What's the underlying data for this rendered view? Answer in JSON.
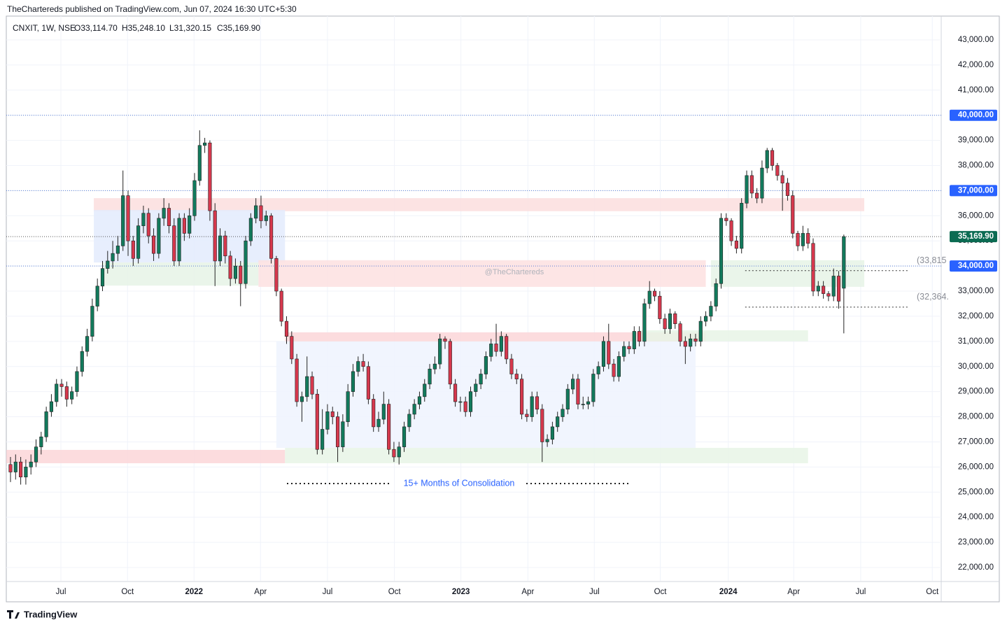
{
  "header": {
    "publisher": "TheChartereds published on TradingView.com, Jun 07, 2024 16:30 UTC+5:30",
    "symbol": "CNXIT, 1W, NSE",
    "open": "O33,114.70",
    "high": "H35,248.10",
    "low": "L31,320.15",
    "close": "C35,169.90",
    "footer": "TradingView"
  },
  "chart_data": {
    "type": "candlestick",
    "up_color": "#127a5c",
    "down_color": "#d6384d",
    "grid": true,
    "xlim": [
      -0.82,
      182.05
    ],
    "ylim": [
      21470,
      44030
    ],
    "xticks": [
      {
        "value": 9.86,
        "label": "Jul"
      },
      {
        "value": 22.9,
        "label": "Oct"
      },
      {
        "value": 35.9,
        "label": "2022"
      },
      {
        "value": 48.9,
        "label": "Apr"
      },
      {
        "value": 62.0,
        "label": "Jul"
      },
      {
        "value": 75.1,
        "label": "Oct"
      },
      {
        "value": 88.1,
        "label": "2023"
      },
      {
        "value": 101.2,
        "label": "Apr"
      },
      {
        "value": 114.2,
        "label": "Jul"
      },
      {
        "value": 127.1,
        "label": "Oct"
      },
      {
        "value": 140.4,
        "label": "2024"
      },
      {
        "value": 153.2,
        "label": "Apr"
      },
      {
        "value": 166.3,
        "label": "Jul"
      },
      {
        "value": 180.3,
        "label": "Oct"
      }
    ],
    "yticks": [
      {
        "value": 22000,
        "label": "22,000.00"
      },
      {
        "value": 23000,
        "label": "23,000.00"
      },
      {
        "value": 24000,
        "label": "24,000.00"
      },
      {
        "value": 25000,
        "label": "25,000.00"
      },
      {
        "value": 26000,
        "label": "26,000.00"
      },
      {
        "value": 27000,
        "label": "27,000.00"
      },
      {
        "value": 28000,
        "label": "28,000.00"
      },
      {
        "value": 29000,
        "label": "29,000.00"
      },
      {
        "value": 30000,
        "label": "30,000.00"
      },
      {
        "value": 31000,
        "label": "31,000.00"
      },
      {
        "value": 32000,
        "label": "32,000.00"
      },
      {
        "value": 33000,
        "label": "33,000.00"
      },
      {
        "value": 34000,
        "label": "34,000.00"
      },
      {
        "value": 35000,
        "label": "35,000.00"
      },
      {
        "value": 36000,
        "label": "36,000.00"
      },
      {
        "value": 37000,
        "label": "37,000.00"
      },
      {
        "value": 38000,
        "label": "38,000.00"
      },
      {
        "value": 39000,
        "label": "39,000.00"
      },
      {
        "value": 40000,
        "label": "40,000.00"
      },
      {
        "value": 41000,
        "label": "41,000.00"
      },
      {
        "value": 42000,
        "label": "42,000.00"
      },
      {
        "value": 43000,
        "label": "43,000.00"
      }
    ],
    "zones": [
      {
        "from": 16.3,
        "to": 167,
        "low": 36180,
        "high": 36700,
        "color": "#fcdede"
      },
      {
        "from": 16.3,
        "to": 53.7,
        "low": 34140,
        "high": 36230,
        "color": "#e3ebfd"
      },
      {
        "from": 18,
        "to": 48.5,
        "low": 33220,
        "high": 34140,
        "color": "#e6f3e6"
      },
      {
        "from": 48.5,
        "to": 136,
        "low": 33170,
        "high": 34230,
        "color": "#fde0e0"
      },
      {
        "from": 137,
        "to": 167,
        "low": 33170,
        "high": 34230,
        "color": "#e6f3e6"
      },
      {
        "from": -0.8,
        "to": 53.7,
        "low": 26150,
        "high": 26680,
        "color": "#fcd6d8"
      },
      {
        "from": 52,
        "to": 134,
        "low": 26760,
        "high": 31000,
        "color": "#eef3fe"
      },
      {
        "from": 53.7,
        "to": 136,
        "low": 31000,
        "high": 31360,
        "color": "#fcd6d8"
      },
      {
        "from": 53.7,
        "to": 156,
        "low": 26150,
        "high": 26760,
        "color": "#e8f4e6"
      },
      {
        "from": 123,
        "to": 156,
        "low": 31000,
        "high": 31440,
        "color": "#e8f4e6"
      }
    ],
    "price_lines": [
      {
        "value": 40000,
        "label": "40,000.00",
        "color": "#2962ff"
      },
      {
        "value": 37000,
        "label": "37,000.00",
        "color": "#2962ff"
      },
      {
        "value": 34000,
        "label": "34,000.00",
        "color": "#2962ff"
      },
      {
        "value": 35169.9,
        "label": "35,169.90",
        "color": "#0b6b52"
      }
    ],
    "levels": [
      {
        "value": 33815,
        "label": "(33,815",
        "from": 143.7,
        "to": 175.5
      },
      {
        "value": 32364,
        "label": "(32,364.",
        "from": 143.7,
        "to": 175.5
      }
    ],
    "annotation": "15+ Months of Consolidation",
    "watermark": "@TheChartereds",
    "candles": [
      [
        26100,
        26400,
        25400,
        25800
      ],
      [
        25800,
        26500,
        25500,
        26200
      ],
      [
        26200,
        26400,
        25300,
        25600
      ],
      [
        25600,
        26300,
        25300,
        26000
      ],
      [
        26000,
        26500,
        25700,
        26200
      ],
      [
        26200,
        27100,
        26000,
        26800
      ],
      [
        26800,
        27400,
        26500,
        27200
      ],
      [
        27200,
        28400,
        27000,
        28200
      ],
      [
        28200,
        28900,
        28000,
        28600
      ],
      [
        28600,
        29500,
        28400,
        29300
      ],
      [
        29300,
        29500,
        28800,
        29200
      ],
      [
        29200,
        29400,
        28400,
        28700
      ],
      [
        28700,
        29200,
        28500,
        29000
      ],
      [
        29000,
        30000,
        28800,
        29800
      ],
      [
        29800,
        30800,
        29600,
        30600
      ],
      [
        30600,
        31500,
        30400,
        31200
      ],
      [
        31200,
        32700,
        31000,
        32400
      ],
      [
        32400,
        33500,
        32200,
        33200
      ],
      [
        33200,
        34200,
        33000,
        33900
      ],
      [
        33900,
        34600,
        33700,
        34200
      ],
      [
        34200,
        35000,
        33900,
        34500
      ],
      [
        34500,
        35200,
        34200,
        34800
      ],
      [
        34800,
        37800,
        34600,
        36800
      ],
      [
        36800,
        37000,
        34400,
        35000
      ],
      [
        35000,
        35200,
        34000,
        34300
      ],
      [
        34300,
        35900,
        34100,
        35600
      ],
      [
        35600,
        36400,
        35300,
        36100
      ],
      [
        36100,
        36300,
        34900,
        35200
      ],
      [
        35200,
        35500,
        34200,
        34500
      ],
      [
        34500,
        36100,
        34300,
        35900
      ],
      [
        35900,
        36700,
        35600,
        36300
      ],
      [
        36300,
        36500,
        35300,
        35600
      ],
      [
        35600,
        35900,
        34000,
        34200
      ],
      [
        34200,
        36100,
        34000,
        35900
      ],
      [
        35900,
        36100,
        35000,
        35300
      ],
      [
        35300,
        36300,
        35100,
        36000
      ],
      [
        36000,
        37700,
        35800,
        37400
      ],
      [
        37400,
        39400,
        37200,
        38800
      ],
      [
        38800,
        39100,
        38500,
        38900
      ],
      [
        38900,
        39000,
        35800,
        36200
      ],
      [
        36200,
        36500,
        33200,
        34200
      ],
      [
        34200,
        35500,
        34000,
        35200
      ],
      [
        35200,
        35400,
        34100,
        34400
      ],
      [
        34400,
        34600,
        33200,
        33500
      ],
      [
        33500,
        34300,
        33300,
        34000
      ],
      [
        34000,
        34200,
        32400,
        33300
      ],
      [
        33300,
        35200,
        33100,
        35000
      ],
      [
        35000,
        36100,
        34800,
        35900
      ],
      [
        35900,
        36700,
        35700,
        36400
      ],
      [
        36400,
        36800,
        35500,
        35800
      ],
      [
        35800,
        36200,
        35600,
        36000
      ],
      [
        36000,
        36100,
        34100,
        34300
      ],
      [
        34300,
        34400,
        32800,
        33000
      ],
      [
        33000,
        33100,
        31600,
        31800
      ],
      [
        31800,
        32000,
        30900,
        31200
      ],
      [
        31200,
        31400,
        30100,
        30300
      ],
      [
        30300,
        30500,
        28400,
        28600
      ],
      [
        28600,
        29000,
        27800,
        28800
      ],
      [
        28800,
        30400,
        28600,
        29600
      ],
      [
        29600,
        29800,
        28700,
        28900
      ],
      [
        28900,
        29100,
        26500,
        26700
      ],
      [
        26700,
        28300,
        26500,
        27500
      ],
      [
        27500,
        28500,
        27300,
        28200
      ],
      [
        28200,
        28400,
        27700,
        28000
      ],
      [
        28000,
        28200,
        26200,
        26800
      ],
      [
        26800,
        28100,
        26600,
        27800
      ],
      [
        27800,
        29300,
        27600,
        29000
      ],
      [
        29000,
        30100,
        28800,
        29800
      ],
      [
        29800,
        30400,
        29600,
        30200
      ],
      [
        30200,
        30500,
        29800,
        30000
      ],
      [
        30000,
        30200,
        28500,
        28700
      ],
      [
        28700,
        28900,
        27400,
        27600
      ],
      [
        27600,
        28200,
        27400,
        27900
      ],
      [
        27900,
        29000,
        27700,
        28500
      ],
      [
        28500,
        28700,
        26500,
        26700
      ],
      [
        26700,
        27000,
        26200,
        26400
      ],
      [
        26400,
        27000,
        26100,
        26800
      ],
      [
        26800,
        27800,
        26600,
        27600
      ],
      [
        27600,
        28300,
        27400,
        28100
      ],
      [
        28100,
        28700,
        27900,
        28500
      ],
      [
        28500,
        29000,
        28300,
        28800
      ],
      [
        28800,
        29500,
        28600,
        29300
      ],
      [
        29300,
        30100,
        29100,
        29900
      ],
      [
        29900,
        30400,
        29700,
        30100
      ],
      [
        30100,
        31300,
        29900,
        31100
      ],
      [
        31100,
        31200,
        30700,
        31000
      ],
      [
        31000,
        31100,
        29100,
        29300
      ],
      [
        29300,
        29500,
        28400,
        28600
      ],
      [
        28600,
        28800,
        28200,
        28600
      ],
      [
        28600,
        28800,
        28000,
        28200
      ],
      [
        28200,
        29200,
        28000,
        29000
      ],
      [
        29000,
        29500,
        28800,
        29300
      ],
      [
        29300,
        29900,
        29100,
        29700
      ],
      [
        29700,
        30600,
        29500,
        30400
      ],
      [
        30400,
        31100,
        30200,
        30900
      ],
      [
        30900,
        31700,
        30400,
        30600
      ],
      [
        30600,
        31400,
        30400,
        31200
      ],
      [
        31200,
        31300,
        30100,
        30300
      ],
      [
        30300,
        30500,
        29500,
        29700
      ],
      [
        29700,
        29900,
        29300,
        29500
      ],
      [
        29500,
        29700,
        27900,
        28100
      ],
      [
        28100,
        28300,
        27800,
        28000
      ],
      [
        28000,
        29000,
        27800,
        28800
      ],
      [
        28800,
        29000,
        28100,
        28300
      ],
      [
        28300,
        28500,
        26200,
        27000
      ],
      [
        27000,
        27300,
        26800,
        27100
      ],
      [
        27100,
        27800,
        26900,
        27600
      ],
      [
        27600,
        28200,
        27400,
        28000
      ],
      [
        28000,
        28500,
        27800,
        28300
      ],
      [
        28300,
        29300,
        28100,
        29100
      ],
      [
        29100,
        29700,
        28900,
        29500
      ],
      [
        29500,
        29700,
        28300,
        28500
      ],
      [
        28500,
        28800,
        28300,
        28500
      ],
      [
        28500,
        28800,
        28300,
        28600
      ],
      [
        28600,
        29900,
        28400,
        29700
      ],
      [
        29700,
        30200,
        29500,
        30000
      ],
      [
        30000,
        31200,
        29800,
        31000
      ],
      [
        31000,
        31700,
        29900,
        30100
      ],
      [
        30100,
        30300,
        29400,
        29600
      ],
      [
        29600,
        30600,
        29400,
        30400
      ],
      [
        30400,
        31000,
        30200,
        30800
      ],
      [
        30800,
        31000,
        30500,
        30700
      ],
      [
        30700,
        31600,
        30500,
        31400
      ],
      [
        31400,
        31600,
        30800,
        31000
      ],
      [
        31000,
        32700,
        30800,
        32500
      ],
      [
        32500,
        33400,
        32300,
        33000
      ],
      [
        33000,
        33100,
        32600,
        32800
      ],
      [
        32800,
        33000,
        31700,
        31900
      ],
      [
        31900,
        32100,
        31300,
        31500
      ],
      [
        31500,
        32300,
        31300,
        32100
      ],
      [
        32100,
        32200,
        31500,
        31700
      ],
      [
        31700,
        31800,
        30800,
        31000
      ],
      [
        31000,
        31200,
        30100,
        30800
      ],
      [
        30800,
        31300,
        30600,
        31100
      ],
      [
        31100,
        31300,
        30800,
        31000
      ],
      [
        31000,
        32000,
        30800,
        31800
      ],
      [
        31800,
        32200,
        31600,
        32000
      ],
      [
        32000,
        32600,
        31800,
        32400
      ],
      [
        32400,
        33500,
        32200,
        33300
      ],
      [
        33300,
        36100,
        33100,
        35900
      ],
      [
        35900,
        36100,
        35600,
        35800
      ],
      [
        35800,
        35900,
        34800,
        35000
      ],
      [
        35000,
        35200,
        34500,
        34700
      ],
      [
        34700,
        36700,
        34500,
        36500
      ],
      [
        36500,
        37800,
        36300,
        37600
      ],
      [
        37600,
        37800,
        36700,
        36900
      ],
      [
        36900,
        37100,
        36500,
        36700
      ],
      [
        36700,
        38200,
        36500,
        37900
      ],
      [
        37900,
        38700,
        37700,
        38600
      ],
      [
        38600,
        38700,
        37800,
        38000
      ],
      [
        38000,
        38100,
        37400,
        37600
      ],
      [
        37600,
        37800,
        36200,
        37300
      ],
      [
        37300,
        37500,
        36600,
        36800
      ],
      [
        36800,
        37000,
        35100,
        35300
      ],
      [
        35300,
        35400,
        34600,
        34800
      ],
      [
        34800,
        35600,
        34600,
        35300
      ],
      [
        35300,
        35500,
        34700,
        34900
      ],
      [
        34900,
        35100,
        32800,
        33000
      ],
      [
        33000,
        33400,
        32800,
        33200
      ],
      [
        33200,
        33400,
        32700,
        32900
      ],
      [
        32900,
        33000,
        32600,
        32800
      ],
      [
        32800,
        33900,
        32600,
        33600
      ],
      [
        33600,
        33800,
        32300,
        32600
      ],
      [
        33114.7,
        35248.1,
        31320.15,
        35169.9
      ]
    ]
  }
}
